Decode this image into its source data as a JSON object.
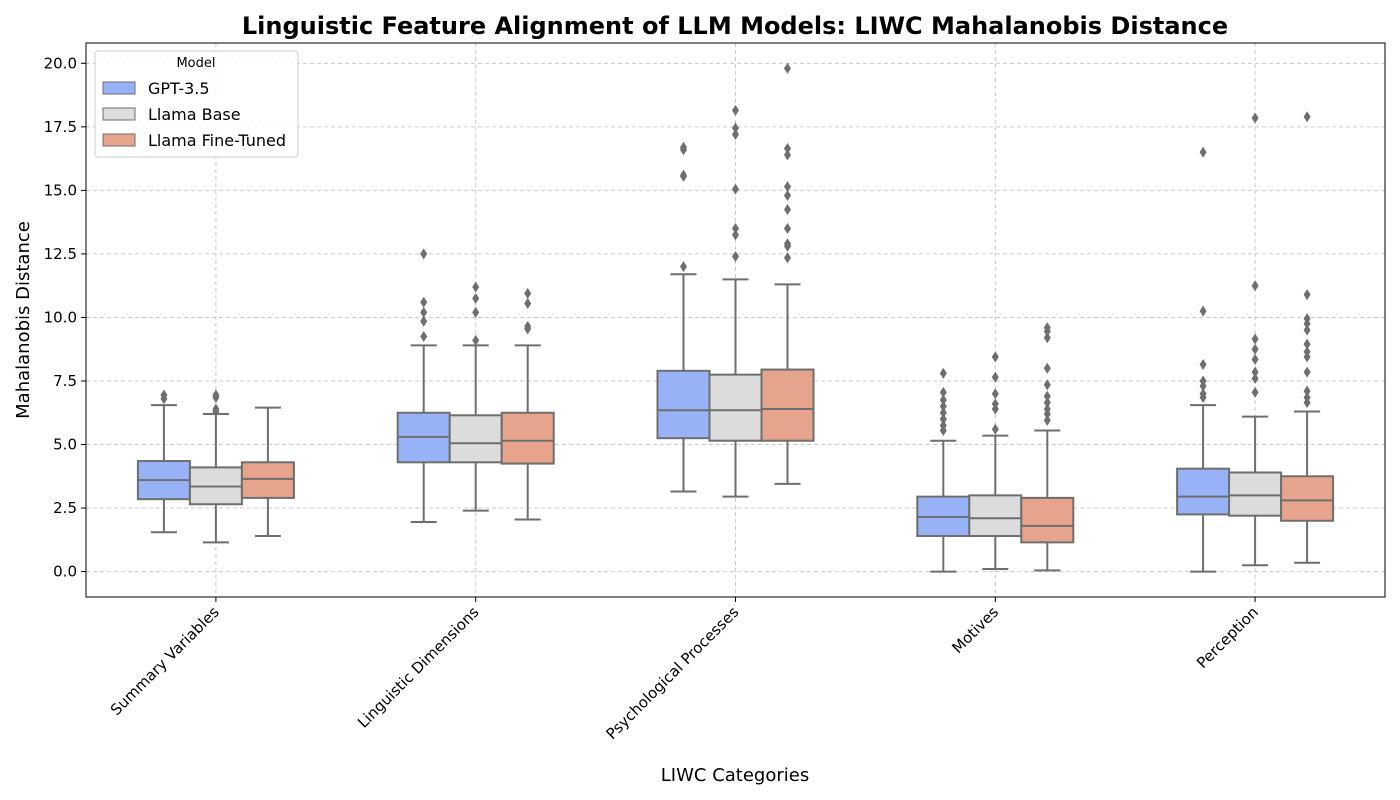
{
  "chart_data": {
    "type": "box",
    "title": "Linguistic Feature Alignment of LLM Models: LIWC Mahalanobis Distance",
    "xlabel": "LIWC Categories",
    "ylabel": "Mahalanobis Distance",
    "ylim": [
      -1.0,
      20.8
    ],
    "yticks": [
      "0.0",
      "2.5",
      "5.0",
      "7.5",
      "10.0",
      "12.5",
      "15.0",
      "17.5",
      "20.0"
    ],
    "ytick_values": [
      0,
      2.5,
      5,
      7.5,
      10,
      12.5,
      15,
      17.5,
      20
    ],
    "grid": true,
    "legend": {
      "title": "Model",
      "placement": "top-left"
    },
    "categories": [
      "Summary Variables",
      "Linguistic Dimensions",
      "Psychological Processes",
      "Motives",
      "Perception"
    ],
    "series": [
      {
        "name": "GPT-3.5",
        "color": "#97b2f7",
        "boxes": [
          {
            "whisker_low": 1.55,
            "q1": 2.85,
            "median": 3.6,
            "q3": 4.35,
            "whisker_high": 6.55,
            "outliers": [
              6.8,
              6.95
            ]
          },
          {
            "whisker_low": 1.95,
            "q1": 4.3,
            "median": 5.3,
            "q3": 6.25,
            "whisker_high": 8.9,
            "outliers": [
              9.25,
              9.85,
              10.2,
              10.6,
              12.5
            ]
          },
          {
            "whisker_low": 3.15,
            "q1": 5.25,
            "median": 6.35,
            "q3": 7.9,
            "whisker_high": 11.7,
            "outliers": [
              12.0,
              15.55,
              15.6,
              16.6,
              16.7
            ]
          },
          {
            "whisker_low": 0.0,
            "q1": 1.4,
            "median": 2.15,
            "q3": 2.95,
            "whisker_high": 5.15,
            "outliers": [
              5.55,
              5.75,
              6.0,
              6.25,
              6.5,
              6.75,
              7.05,
              7.8
            ]
          },
          {
            "whisker_low": 0.0,
            "q1": 2.25,
            "median": 2.95,
            "q3": 4.05,
            "whisker_high": 6.55,
            "outliers": [
              6.85,
              7.0,
              7.3,
              7.5,
              8.15,
              10.25,
              16.5
            ]
          }
        ]
      },
      {
        "name": "Llama Base",
        "color": "#dcdcdc",
        "boxes": [
          {
            "whisker_low": 1.15,
            "q1": 2.65,
            "median": 3.35,
            "q3": 4.1,
            "whisker_high": 6.2,
            "outliers": [
              6.3,
              6.4,
              6.85,
              6.95
            ]
          },
          {
            "whisker_low": 2.4,
            "q1": 4.3,
            "median": 5.05,
            "q3": 6.15,
            "whisker_high": 8.9,
            "outliers": [
              9.1,
              10.2,
              10.75,
              11.2
            ]
          },
          {
            "whisker_low": 2.95,
            "q1": 5.15,
            "median": 6.35,
            "q3": 7.75,
            "whisker_high": 11.5,
            "outliers": [
              12.4,
              13.25,
              13.5,
              15.05,
              17.2,
              17.45,
              18.15
            ]
          },
          {
            "whisker_low": 0.1,
            "q1": 1.4,
            "median": 2.1,
            "q3": 3.0,
            "whisker_high": 5.35,
            "outliers": [
              5.6,
              6.4,
              6.6,
              7.0,
              7.65,
              8.45
            ]
          },
          {
            "whisker_low": 0.25,
            "q1": 2.2,
            "median": 3.0,
            "q3": 3.9,
            "whisker_high": 6.1,
            "outliers": [
              7.05,
              7.6,
              7.85,
              8.35,
              8.75,
              9.15,
              11.25,
              17.85
            ]
          }
        ]
      },
      {
        "name": "Llama Fine-Tuned",
        "color": "#e5a48b",
        "boxes": [
          {
            "whisker_low": 1.4,
            "q1": 2.9,
            "median": 3.65,
            "q3": 4.3,
            "whisker_high": 6.45,
            "outliers": []
          },
          {
            "whisker_low": 2.05,
            "q1": 4.25,
            "median": 5.15,
            "q3": 6.25,
            "whisker_high": 8.9,
            "outliers": [
              9.55,
              9.65,
              10.55,
              10.95
            ]
          },
          {
            "whisker_low": 3.45,
            "q1": 5.15,
            "median": 6.4,
            "q3": 7.95,
            "whisker_high": 11.3,
            "outliers": [
              12.35,
              12.8,
              12.9,
              13.5,
              14.25,
              14.8,
              15.15,
              16.4,
              16.65,
              19.8
            ]
          },
          {
            "whisker_low": 0.05,
            "q1": 1.15,
            "median": 1.8,
            "q3": 2.9,
            "whisker_high": 5.55,
            "outliers": [
              5.95,
              6.2,
              6.4,
              6.65,
              6.9,
              7.35,
              8.0,
              9.2,
              9.45,
              9.6
            ]
          },
          {
            "whisker_low": 0.35,
            "q1": 2.0,
            "median": 2.8,
            "q3": 3.75,
            "whisker_high": 6.3,
            "outliers": [
              6.65,
              6.85,
              7.1,
              7.85,
              8.45,
              8.65,
              8.95,
              9.5,
              9.75,
              9.95,
              10.9,
              17.9
            ]
          }
        ]
      }
    ]
  }
}
